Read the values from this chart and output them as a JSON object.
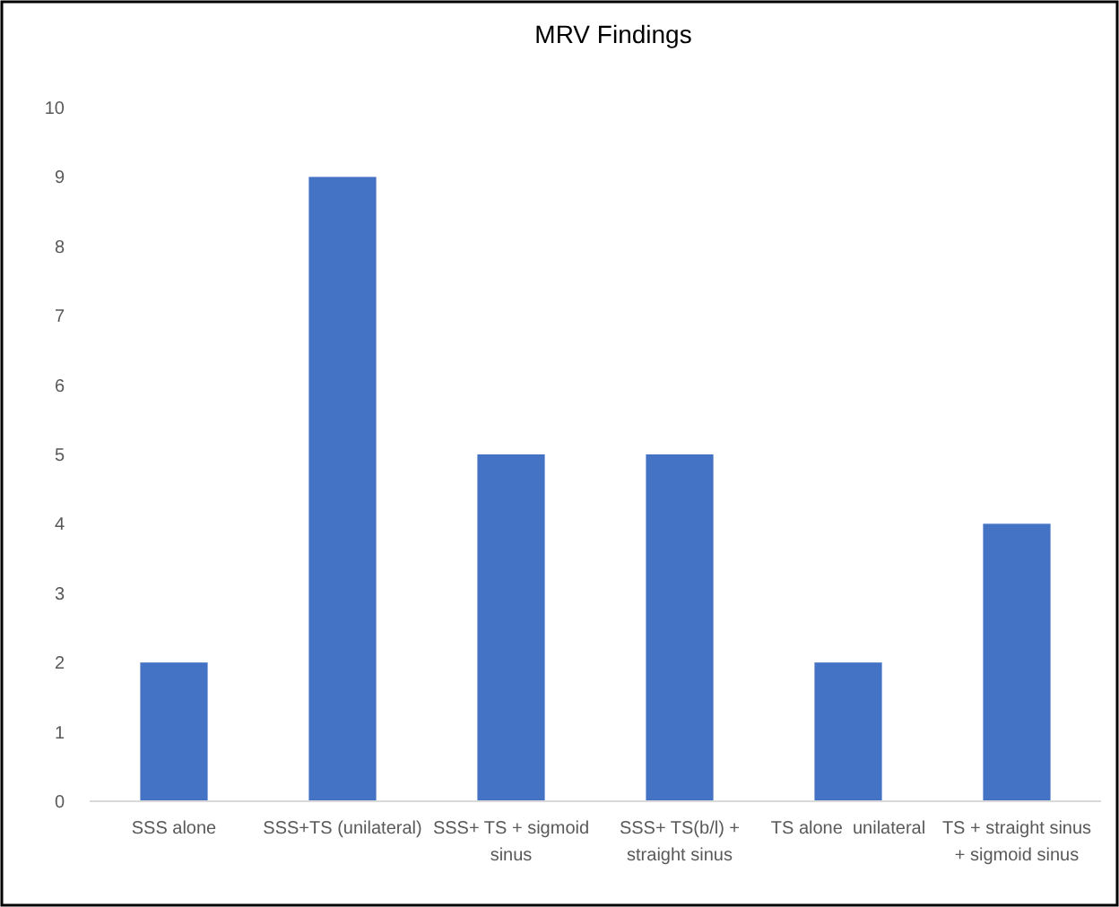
{
  "chart_data": {
    "type": "bar",
    "title": "MRV Findings",
    "categories": [
      "SSS alone",
      "SSS+TS (unilateral)",
      "SSS+ TS + sigmoid sinus",
      "SSS+ TS(b/l) + straight sinus",
      "TS alone  unilateral",
      "TS + straight sinus + sigmoid sinus"
    ],
    "values": [
      2,
      9,
      5,
      5,
      2,
      4
    ],
    "color": "#4472c4",
    "ylim": [
      0,
      10
    ],
    "yticks": [
      0,
      1,
      2,
      3,
      4,
      5,
      6,
      7,
      8,
      9,
      10
    ],
    "grid": false
  }
}
